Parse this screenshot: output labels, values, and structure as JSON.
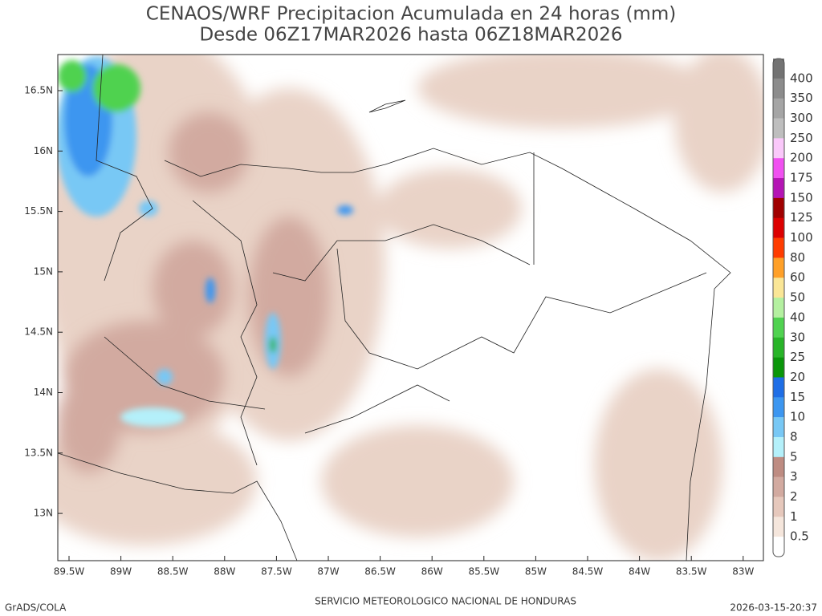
{
  "title": [
    "CENAOS/WRF Precipitacion Acumulada en 24 horas (mm)",
    "Desde 06Z17MAR2026 hasta 06Z18MAR2026"
  ],
  "map": {
    "lat_labels": [
      "16.5N",
      "16N",
      "15.5N",
      "15N",
      "14.5N",
      "14N",
      "13.5N",
      "13N"
    ],
    "lon_labels": [
      "89.5W",
      "89W",
      "88.5W",
      "88W",
      "87.5W",
      "87W",
      "86.5W",
      "86W",
      "85.5W",
      "85W",
      "84.5W",
      "84W",
      "83.5W",
      "83W"
    ]
  },
  "colorbar": {
    "labels": [
      "400",
      "350",
      "300",
      "250",
      "200",
      "175",
      "150",
      "125",
      "100",
      "80",
      "60",
      "50",
      "40",
      "30",
      "25",
      "20",
      "15",
      "10",
      "8",
      "5",
      "3",
      "2",
      "1",
      "0.5"
    ],
    "colors": [
      "#737373",
      "#8c8c8c",
      "#a5a5a5",
      "#bebebe",
      "#fac8fa",
      "#f050f0",
      "#b414b4",
      "#a00000",
      "#dc0000",
      "#ff3c00",
      "#ffa028",
      "#fae696",
      "#b4f0a0",
      "#50d250",
      "#28b428",
      "#0a960a",
      "#1e6ee6",
      "#3c96f0",
      "#78c8f5",
      "#b4f0fa",
      "#be8c82",
      "#d2aaa0",
      "#e6c8bc",
      "#f5e6dc",
      "#ffffff"
    ]
  },
  "footer": {
    "left": "GrADS/COLA",
    "center": "SERVICIO METEOROLOGICO NACIONAL DE HONDURAS",
    "right": "2026-03-15-20:37"
  }
}
